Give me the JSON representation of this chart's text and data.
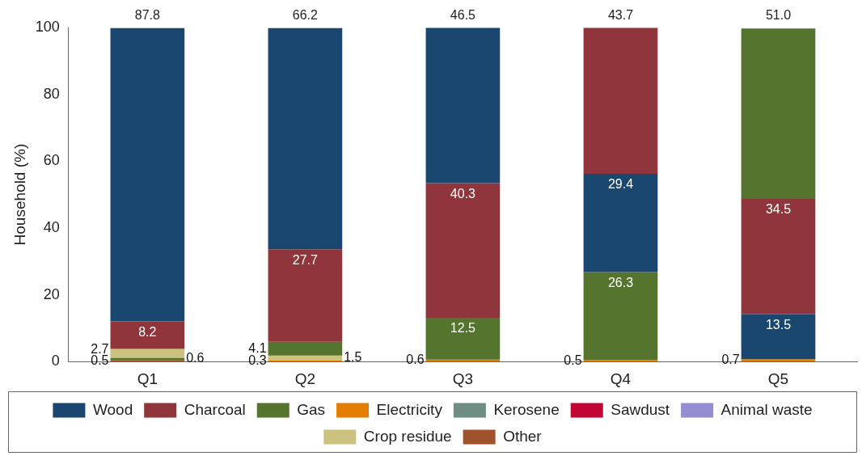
{
  "chart_data": {
    "type": "bar",
    "ylabel": "Household (%)",
    "categories": [
      "Q1",
      "Q2",
      "Q3",
      "Q4",
      "Q5"
    ],
    "ylim": [
      0,
      100
    ],
    "yticks": [
      0,
      20,
      40,
      60,
      80,
      100
    ],
    "grid": false,
    "legend": "bottom",
    "series": [
      {
        "name": "Wood",
        "color": "#1a476f",
        "values": [
          87.8,
          66.2,
          46.5,
          29.4,
          13.5
        ],
        "value_labels": [
          "87.8",
          "66.2",
          "46.5",
          "29.4",
          "13.5"
        ],
        "base": [
          12.0,
          33.6,
          53.4,
          26.8,
          0.7
        ]
      },
      {
        "name": "Charcoal",
        "color": "#90353b",
        "values": [
          8.2,
          27.7,
          40.3,
          43.7,
          34.5
        ],
        "value_labels": [
          "8.2",
          "27.7",
          "40.3",
          "43.7",
          "34.5"
        ],
        "base": [
          3.8,
          5.9,
          13.1,
          56.2,
          14.2
        ]
      },
      {
        "name": "Gas",
        "color": "#55752f",
        "values": [
          0.6,
          4.1,
          12.5,
          26.3,
          51.0
        ],
        "value_labels": [
          "0.6",
          "4.1",
          "12.5",
          "26.3",
          "51.0"
        ],
        "base": [
          0.5,
          1.8,
          0.6,
          0.5,
          48.7
        ]
      },
      {
        "name": "Electricity",
        "color": "#e37e00",
        "values": [
          null,
          0.3,
          0.6,
          0.5,
          0.7
        ],
        "value_labels": [
          null,
          "0.3",
          "0.6",
          "0.5",
          "0.7"
        ],
        "base": [
          null,
          0,
          0,
          0,
          0
        ]
      },
      {
        "name": "Kerosene",
        "color": "#6e8e84",
        "values": [
          null,
          null,
          null,
          null,
          null
        ],
        "base": [
          null,
          null,
          null,
          null,
          null
        ]
      },
      {
        "name": "Sawdust",
        "color": "#c10534",
        "values": [
          null,
          null,
          null,
          null,
          null
        ],
        "base": [
          null,
          null,
          null,
          null,
          null
        ]
      },
      {
        "name": "Animal waste",
        "color": "#938dd2",
        "values": [
          null,
          null,
          null,
          null,
          null
        ],
        "base": [
          null,
          null,
          null,
          null,
          null
        ]
      },
      {
        "name": "Crop residue",
        "color": "#cac27e",
        "values": [
          2.7,
          1.5,
          null,
          null,
          null
        ],
        "value_labels": [
          "2.7",
          "1.5",
          null,
          null,
          null
        ],
        "base": [
          1.1,
          0.3,
          null,
          null,
          null
        ]
      },
      {
        "name": "Other",
        "color": "#a0522d",
        "values": [
          0.5,
          null,
          null,
          null,
          null
        ],
        "value_labels": [
          "0.5",
          null,
          null,
          null,
          null
        ],
        "base": [
          0,
          null,
          null,
          null,
          null
        ]
      }
    ]
  }
}
